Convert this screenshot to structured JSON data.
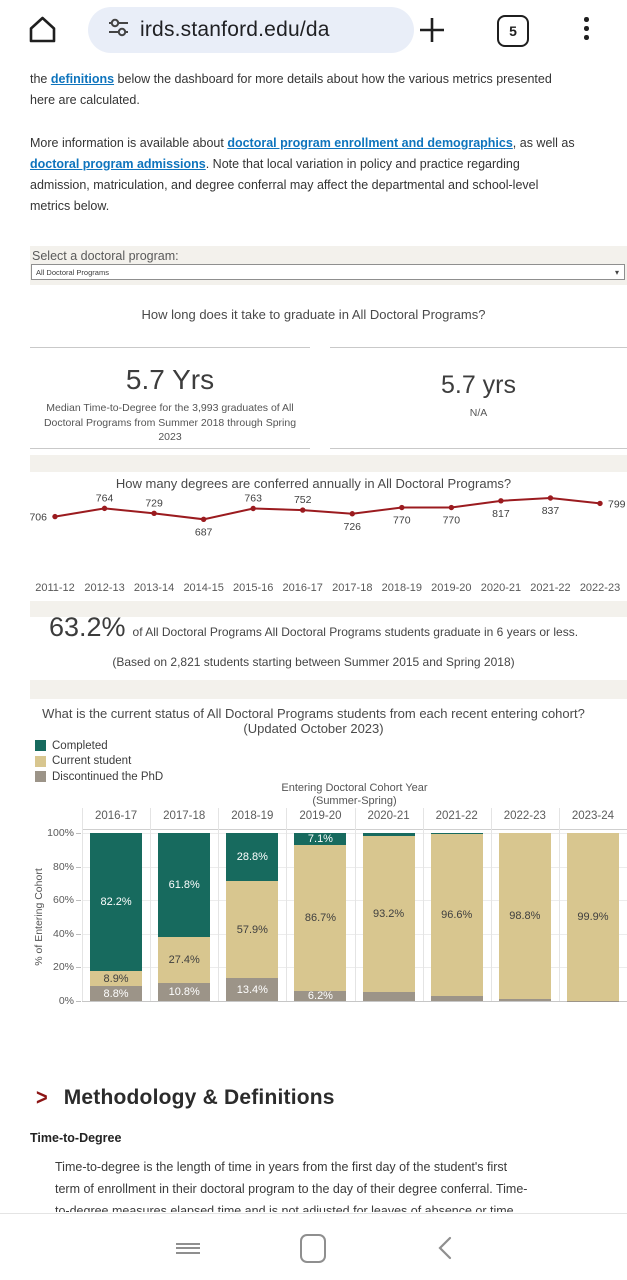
{
  "browser": {
    "url": "irds.stanford.edu/da",
    "tab_count": "5"
  },
  "icons": {
    "select_caret": "▾",
    "method_chevron": ">"
  },
  "intro": {
    "p1_pre": "the ",
    "p1_link": "definitions",
    "p1_post": " below the dashboard for more details about how the various metrics presented here are calculated.",
    "p2_pre": "More information is available about ",
    "p2_link1": "doctoral program enrollment and demographics",
    "p2_mid": ", as well as ",
    "p2_link2": "doctoral program admissions",
    "p2_post": ". Note that local variation in policy and practice regarding admission, matriculation, and degree conferral may affect the departmental and school-level metrics below."
  },
  "program_select": {
    "label": "Select a doctoral program:",
    "value": "All Doctoral Programs"
  },
  "ttd": {
    "heading": "How long does it take to graduate in All Doctoral Programs?",
    "left_value": "5.7 Yrs",
    "left_caption": "Median Time-to-Degree for the 3,993 graduates of All Doctoral Programs from Summer 2018 through Spring 2023",
    "right_value": "5.7 yrs",
    "right_caption": "N/A"
  },
  "grad": {
    "percent": "63.2%",
    "text": "of All Doctoral Programs All Doctoral Programs students graduate in 6 years or less.",
    "basis": "(Based on 2,821 students starting between Summer 2015 and Spring 2018)"
  },
  "methodology": {
    "heading": "Methodology & Definitions",
    "subheading": "Time-to-Degree",
    "paragraph": "Time-to-degree is the length of time in years from the first day of the student's first term of enrollment in their doctoral program to the day of their degree conferral. Time-to-degree measures elapsed time and is not adjusted for leaves of absence or time spent away from the program."
  },
  "chart_data": [
    {
      "type": "line",
      "title": "How many degrees are conferred annually in All Doctoral Programs?",
      "x": [
        "2011-12",
        "2012-13",
        "2013-14",
        "2014-15",
        "2015-16",
        "2016-17",
        "2017-18",
        "2018-19",
        "2019-20",
        "2020-21",
        "2021-22",
        "2022-23"
      ],
      "values": [
        706,
        764,
        729,
        687,
        763,
        752,
        726,
        770,
        770,
        817,
        837,
        799
      ],
      "label_positions": [
        "left",
        "above",
        "above",
        "below",
        "above",
        "above",
        "below",
        "below",
        "below",
        "below",
        "below",
        "right"
      ],
      "color": "#9b1b1f",
      "ylim": [
        650,
        870
      ],
      "grid": false,
      "legend": "none"
    },
    {
      "type": "bar",
      "stacked": true,
      "title": "What is the current status of All Doctoral Programs students from each recent entering cohort?",
      "subtitle": "(Updated October 2023)",
      "xlabel_lines": [
        "Entering Doctoral Cohort Year",
        "(Summer-Spring)"
      ],
      "ylabel": "% of Entering Cohort",
      "categories": [
        "2016-17",
        "2017-18",
        "2018-19",
        "2019-20",
        "2020-21",
        "2021-22",
        "2022-23",
        "2023-24"
      ],
      "series": [
        {
          "name": "Completed",
          "color": "#176a5e",
          "label_color": "#ffffff",
          "values": [
            82.2,
            61.8,
            28.8,
            7.1,
            1.5,
            0.6,
            0,
            0
          ],
          "labels": [
            "82.2%",
            "61.8%",
            "28.8%",
            "7.1%",
            "",
            "",
            "",
            ""
          ]
        },
        {
          "name": "Current student",
          "color": "#d8c68f",
          "label_color": "#3f3f3f",
          "values": [
            8.9,
            27.4,
            57.9,
            86.7,
            93.2,
            96.6,
            98.8,
            99.9
          ],
          "labels": [
            "8.9%",
            "27.4%",
            "57.9%",
            "86.7%",
            "93.2%",
            "96.6%",
            "98.8%",
            "99.9%"
          ]
        },
        {
          "name": "Discontinued the PhD",
          "color": "#9c9488",
          "label_color": "#ffffff",
          "values": [
            8.8,
            10.8,
            13.4,
            6.2,
            5.3,
            2.8,
            1.2,
            0.1
          ],
          "labels": [
            "8.8%",
            "10.8%",
            "13.4%",
            "6.2%",
            "",
            "",
            "",
            ""
          ]
        }
      ],
      "yticks": [
        "100%",
        "80%",
        "60%",
        "40%",
        "20%",
        "0%"
      ],
      "ylim": [
        0,
        100
      ],
      "grid": true,
      "legend_position": "top-left"
    }
  ]
}
